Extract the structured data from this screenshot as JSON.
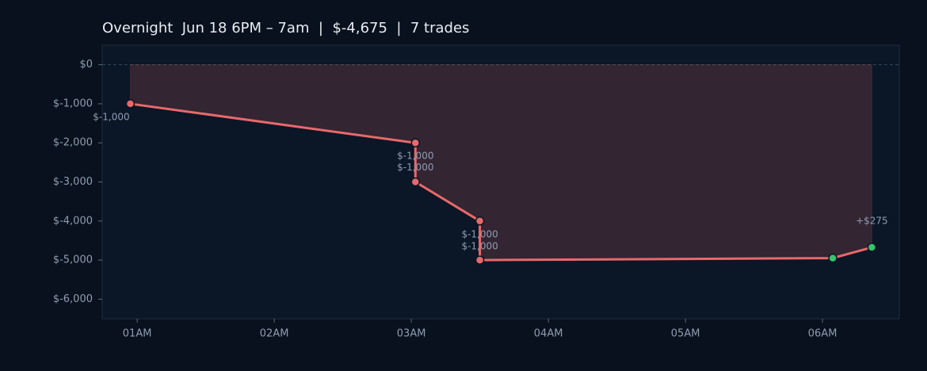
{
  "chart_data": {
    "type": "line",
    "title": "Overnight  Jun 18 6PM – 7am  |  $-4,675  |  7 trades",
    "x": [
      0.95,
      3.03,
      3.03,
      3.5,
      3.5,
      6.075,
      6.36
    ],
    "series": [
      {
        "color": "#e8696b",
        "values": [
          -1000,
          -2000,
          -3000,
          -4000,
          -5000,
          -4950,
          -4675
        ]
      }
    ],
    "point_colors": [
      "#e8696b",
      "#e8696b",
      "#e8696b",
      "#e8696b",
      "#e8696b",
      "#35c46a",
      "#35c46a"
    ],
    "trade_labels": [
      "$-1,000",
      "$-1,000",
      "$-1,000",
      "$-1,000",
      "$-1,000",
      null,
      "+$275"
    ],
    "fill_color": "#e8696b",
    "xlim": [
      0.745,
      6.56
    ],
    "xticks": [
      {
        "value": 1,
        "label": "01AM"
      },
      {
        "value": 2,
        "label": "02AM"
      },
      {
        "value": 3,
        "label": "03AM"
      },
      {
        "value": 4,
        "label": "04AM"
      },
      {
        "value": 5,
        "label": "05AM"
      },
      {
        "value": 6,
        "label": "06AM"
      }
    ],
    "ylim": [
      -6500,
      500
    ],
    "yticks": [
      {
        "value": 0,
        "label": "$0"
      },
      {
        "value": -1000,
        "label": "$-1,000"
      },
      {
        "value": -2000,
        "label": "$-2,000"
      },
      {
        "value": -3000,
        "label": "$-3,000"
      },
      {
        "value": -4000,
        "label": "$-4,000"
      },
      {
        "value": -5000,
        "label": "$-5,000"
      },
      {
        "value": -6000,
        "label": "$-6,000"
      }
    ],
    "zero_line": 0
  }
}
